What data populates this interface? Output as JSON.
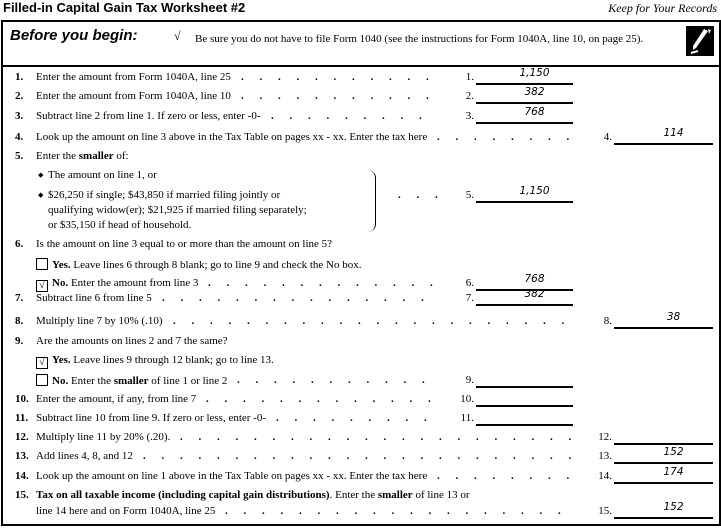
{
  "title": "Filled-in Capital Gain Tax Worksheet #2",
  "keep": "Keep for Your Records",
  "before": {
    "heading": "Before you begin:",
    "check": "√",
    "text": "Be sure you do not have to file Form 1040 (see the instructions for Form 1040A, line 10, on page 25)."
  },
  "rows": [
    {
      "num": "1.",
      "parts": [
        {
          "t": "Enter the amount from Form 1040A, line 25"
        }
      ],
      "col": "inner",
      "label": "1.",
      "value": "1,150"
    },
    {
      "num": "2.",
      "parts": [
        {
          "t": "Enter the amount from Form 1040A, line 10"
        }
      ],
      "col": "inner",
      "label": "2.",
      "value": "382"
    },
    {
      "num": "3.",
      "parts": [
        {
          "t": "Subtract line 2 from line 1. If zero or less, enter -0-"
        }
      ],
      "col": "inner",
      "label": "3.",
      "value": "768"
    },
    {
      "num": "4.",
      "parts": [
        {
          "t": "Look up the amount on line 3 above in the Tax Table on pages xx - xx. Enter the tax here"
        }
      ],
      "col": "outer",
      "label": "4.",
      "value": "114"
    },
    {
      "num": "5.",
      "parts": [
        {
          "t": "Enter the "
        },
        {
          "t": "smaller",
          "b": true
        },
        {
          "t": " of:"
        }
      ]
    },
    {
      "bullet": true,
      "parts": [
        {
          "t": "The amount on line 1, or"
        }
      ]
    },
    {
      "bullet": true,
      "parts": [
        {
          "t": "$26,250 if single; $43,850 if married filing jointly or"
        }
      ],
      "col": "inner",
      "label": "5.",
      "value": "1,150"
    },
    {
      "indent": true,
      "parts": [
        {
          "t": "qualifying widow(er); $21,925 if married filing separately;"
        }
      ]
    },
    {
      "indent": true,
      "parts": [
        {
          "t": "or $35,150 if head of household."
        }
      ]
    },
    {
      "num": "6.",
      "parts": [
        {
          "t": "Is the amount on line 3 equal to or more than the amount on line 5?"
        }
      ]
    },
    {
      "checkbox": "",
      "parts": [
        {
          "t": "Yes.",
          "b": true
        },
        {
          "t": " Leave lines 6 through 8 blank; go to line 9 and check the  No  box."
        }
      ]
    },
    {
      "checkbox": "√",
      "parts": [
        {
          "t": "No.",
          "b": true
        },
        {
          "t": " Enter the amount from line 3"
        }
      ],
      "col": "inner",
      "label": "6.",
      "value": "768"
    },
    {
      "num": "7.",
      "parts": [
        {
          "t": "Subtract line 6 from line 5"
        }
      ],
      "col": "inner",
      "label": "7.",
      "value": "382"
    },
    {
      "num": "8.",
      "parts": [
        {
          "t": "Multiply line 7 by 10% (.10)"
        }
      ],
      "col": "outer",
      "label": "8.",
      "value": "38"
    },
    {
      "num": "9.",
      "parts": [
        {
          "t": "Are the amounts on lines 2 and 7 the same?"
        }
      ]
    },
    {
      "checkbox": "√",
      "parts": [
        {
          "t": "Yes.",
          "b": true
        },
        {
          "t": " Leave lines 9 through 12 blank; go to line 13."
        }
      ]
    },
    {
      "checkbox": "",
      "parts": [
        {
          "t": "No.",
          "b": true
        },
        {
          "t": " Enter the "
        },
        {
          "t": "smaller",
          "b": true
        },
        {
          "t": " of line 1 or line 2"
        }
      ],
      "col": "inner",
      "label": "9.",
      "value": ""
    },
    {
      "num": "10.",
      "parts": [
        {
          "t": "Enter the amount, if any, from line 7"
        }
      ],
      "col": "inner",
      "label": "10.",
      "value": ""
    },
    {
      "num": "11.",
      "parts": [
        {
          "t": "Subtract line 10 from line 9. If zero or less, enter -0-"
        }
      ],
      "col": "inner",
      "label": "11.",
      "value": ""
    },
    {
      "num": "12.",
      "parts": [
        {
          "t": "Multiply line 11 by 20% (.20)."
        }
      ],
      "col": "outer",
      "label": "12.",
      "value": ""
    },
    {
      "num": "13.",
      "parts": [
        {
          "t": "Add lines 4, 8, and 12"
        }
      ],
      "col": "outer",
      "label": "13.",
      "value": "152"
    },
    {
      "num": "14.",
      "parts": [
        {
          "t": "Look up the amount on line 1 above in the Tax Table on pages xx - xx. Enter the tax here"
        }
      ],
      "col": "outer",
      "label": "14.",
      "value": "174"
    },
    {
      "num": "15.",
      "parts": [
        {
          "t": "Tax on all taxable income (including capital gain distributions)",
          "b": true
        },
        {
          "t": ". Enter the "
        },
        {
          "t": "smaller",
          "b": true
        },
        {
          "t": " of line 13 or"
        }
      ]
    },
    {
      "indent15": true,
      "parts": [
        {
          "t": "line 14 here and on Form 1040A, line 25"
        }
      ],
      "col": "outer",
      "label": "15.",
      "value": "152"
    }
  ]
}
